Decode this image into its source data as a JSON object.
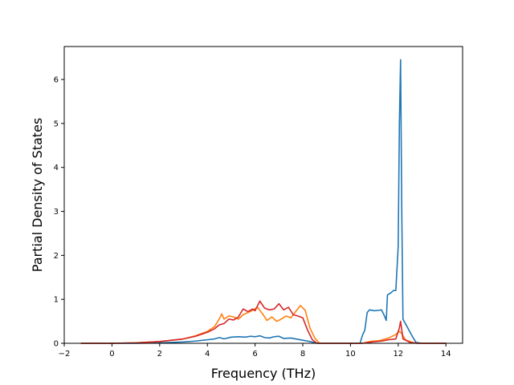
{
  "chart_data": {
    "type": "line",
    "title": "",
    "xlabel": "Frequency (THz)",
    "ylabel": "Partial Density of States",
    "xlim": [
      -2,
      14.7
    ],
    "ylim": [
      0,
      6.75
    ],
    "xticks": [
      -2,
      0,
      2,
      4,
      6,
      8,
      10,
      12,
      14
    ],
    "yticks": [
      0,
      1,
      2,
      3,
      4,
      5,
      6
    ],
    "grid": false,
    "legend": "none",
    "series": [
      {
        "color": "#1f77b4",
        "points": [
          [
            -1.3,
            0
          ],
          [
            0,
            0
          ],
          [
            1,
            0
          ],
          [
            2,
            0.01
          ],
          [
            3,
            0.03
          ],
          [
            3.5,
            0.05
          ],
          [
            4,
            0.08
          ],
          [
            4.3,
            0.1
          ],
          [
            4.5,
            0.13
          ],
          [
            4.7,
            0.1
          ],
          [
            5,
            0.14
          ],
          [
            5.3,
            0.15
          ],
          [
            5.6,
            0.14
          ],
          [
            5.8,
            0.16
          ],
          [
            6,
            0.15
          ],
          [
            6.2,
            0.17
          ],
          [
            6.4,
            0.13
          ],
          [
            6.6,
            0.12
          ],
          [
            6.8,
            0.15
          ],
          [
            7,
            0.16
          ],
          [
            7.2,
            0.11
          ],
          [
            7.5,
            0.12
          ],
          [
            7.8,
            0.09
          ],
          [
            8,
            0.07
          ],
          [
            8.3,
            0.04
          ],
          [
            8.6,
            0.0
          ],
          [
            9,
            0
          ],
          [
            10,
            0
          ],
          [
            10.4,
            0
          ],
          [
            10.5,
            0.18
          ],
          [
            10.6,
            0.3
          ],
          [
            10.7,
            0.7
          ],
          [
            10.8,
            0.76
          ],
          [
            11,
            0.74
          ],
          [
            11.2,
            0.75
          ],
          [
            11.3,
            0.76
          ],
          [
            11.4,
            0.65
          ],
          [
            11.5,
            0.52
          ],
          [
            11.55,
            1.1
          ],
          [
            11.7,
            1.15
          ],
          [
            11.8,
            1.2
          ],
          [
            11.9,
            1.2
          ],
          [
            12.0,
            2.2
          ],
          [
            12.05,
            5.0
          ],
          [
            12.1,
            6.45
          ],
          [
            12.15,
            3.0
          ],
          [
            12.2,
            0.55
          ],
          [
            12.4,
            0.35
          ],
          [
            12.6,
            0.15
          ],
          [
            12.75,
            0.02
          ],
          [
            13,
            0
          ],
          [
            14,
            0
          ]
        ]
      },
      {
        "color": "#ff7f0e",
        "points": [
          [
            -1.3,
            0
          ],
          [
            0,
            0
          ],
          [
            1,
            0.01
          ],
          [
            2,
            0.04
          ],
          [
            3,
            0.1
          ],
          [
            3.5,
            0.17
          ],
          [
            4,
            0.27
          ],
          [
            4.3,
            0.38
          ],
          [
            4.5,
            0.55
          ],
          [
            4.6,
            0.67
          ],
          [
            4.7,
            0.55
          ],
          [
            4.9,
            0.62
          ],
          [
            5.1,
            0.6
          ],
          [
            5.3,
            0.55
          ],
          [
            5.5,
            0.65
          ],
          [
            5.7,
            0.7
          ],
          [
            5.9,
            0.75
          ],
          [
            6.1,
            0.82
          ],
          [
            6.3,
            0.68
          ],
          [
            6.5,
            0.52
          ],
          [
            6.7,
            0.6
          ],
          [
            6.9,
            0.5
          ],
          [
            7.1,
            0.55
          ],
          [
            7.3,
            0.62
          ],
          [
            7.5,
            0.58
          ],
          [
            7.7,
            0.72
          ],
          [
            7.9,
            0.86
          ],
          [
            8.1,
            0.75
          ],
          [
            8.3,
            0.35
          ],
          [
            8.5,
            0.12
          ],
          [
            8.7,
            0.0
          ],
          [
            10,
            0
          ],
          [
            10.5,
            0
          ],
          [
            10.8,
            0.04
          ],
          [
            11.2,
            0.06
          ],
          [
            11.6,
            0.12
          ],
          [
            11.9,
            0.2
          ],
          [
            12.05,
            0.27
          ],
          [
            12.15,
            0.22
          ],
          [
            12.3,
            0.08
          ],
          [
            12.6,
            0.02
          ],
          [
            12.8,
            0
          ],
          [
            14,
            0
          ]
        ]
      },
      {
        "color": "#d62728",
        "points": [
          [
            -1.3,
            0
          ],
          [
            0,
            0
          ],
          [
            1,
            0.01
          ],
          [
            2,
            0.04
          ],
          [
            3,
            0.1
          ],
          [
            3.5,
            0.16
          ],
          [
            4,
            0.25
          ],
          [
            4.3,
            0.33
          ],
          [
            4.5,
            0.42
          ],
          [
            4.7,
            0.45
          ],
          [
            4.9,
            0.55
          ],
          [
            5.1,
            0.53
          ],
          [
            5.3,
            0.6
          ],
          [
            5.5,
            0.78
          ],
          [
            5.7,
            0.72
          ],
          [
            5.9,
            0.78
          ],
          [
            6.0,
            0.74
          ],
          [
            6.2,
            0.96
          ],
          [
            6.4,
            0.8
          ],
          [
            6.6,
            0.76
          ],
          [
            6.8,
            0.78
          ],
          [
            7.0,
            0.9
          ],
          [
            7.2,
            0.76
          ],
          [
            7.4,
            0.82
          ],
          [
            7.6,
            0.65
          ],
          [
            7.8,
            0.62
          ],
          [
            8.0,
            0.58
          ],
          [
            8.2,
            0.3
          ],
          [
            8.4,
            0.08
          ],
          [
            8.6,
            0.0
          ],
          [
            10,
            0
          ],
          [
            10.5,
            0
          ],
          [
            10.9,
            0.03
          ],
          [
            11.3,
            0.05
          ],
          [
            11.6,
            0.08
          ],
          [
            11.9,
            0.1
          ],
          [
            12.05,
            0.35
          ],
          [
            12.1,
            0.5
          ],
          [
            12.2,
            0.1
          ],
          [
            12.5,
            0.02
          ],
          [
            12.8,
            0
          ],
          [
            14,
            0
          ]
        ]
      }
    ]
  }
}
